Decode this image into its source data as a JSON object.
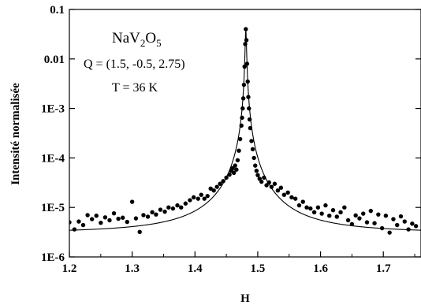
{
  "chart_data": {
    "type": "scatter",
    "xlabel": "H",
    "ylabel": "Intensité normalisée",
    "xlim": [
      1.2,
      1.76
    ],
    "ylim": [
      1e-06,
      0.1
    ],
    "y_scale": "log",
    "grid": false,
    "x_ticks": [
      "1.2",
      "1.3",
      "1.4",
      "1.5",
      "1.6",
      "1.7"
    ],
    "y_ticks": [
      "1E-6",
      "1E-5",
      "1E-4",
      "1E-3",
      "0.01",
      "0.1"
    ],
    "annotations": {
      "compound_base": "NaV",
      "compound_sub1": "2",
      "compound_mid": "O",
      "compound_sub2": "5",
      "q_vector": "Q = (1.5, -0.5, 2.75)",
      "temperature": "T = 36 K"
    },
    "fit": {
      "type": "lorentzian",
      "center": 1.481,
      "peak": 0.04,
      "hwhm": 0.00095
    },
    "series": [
      {
        "type": "scatter",
        "points": [
          [
            1.2,
            5e-06
          ],
          [
            1.208,
            3.6e-06
          ],
          [
            1.215,
            5.2e-06
          ],
          [
            1.222,
            4.4e-06
          ],
          [
            1.229,
            7e-06
          ],
          [
            1.236,
            5.8e-06
          ],
          [
            1.243,
            6.8e-06
          ],
          [
            1.25,
            4.9e-06
          ],
          [
            1.257,
            6.3e-06
          ],
          [
            1.264,
            5.5e-06
          ],
          [
            1.271,
            7.6e-06
          ],
          [
            1.278,
            5.9e-06
          ],
          [
            1.285,
            6.2e-06
          ],
          [
            1.292,
            5.1e-06
          ],
          [
            1.3,
            1.3e-05
          ],
          [
            1.306,
            6e-06
          ],
          [
            1.312,
            3.2e-06
          ],
          [
            1.318,
            7e-06
          ],
          [
            1.325,
            6.5e-06
          ],
          [
            1.332,
            8e-06
          ],
          [
            1.338,
            7.2e-06
          ],
          [
            1.345,
            9e-06
          ],
          [
            1.352,
            8.2e-06
          ],
          [
            1.358,
            1e-05
          ],
          [
            1.365,
            9.5e-06
          ],
          [
            1.372,
            1.1e-05
          ],
          [
            1.378,
            1e-05
          ],
          [
            1.385,
            1.2e-05
          ],
          [
            1.392,
            1.4e-05
          ],
          [
            1.398,
            1.6e-05
          ],
          [
            1.405,
            1.5e-05
          ],
          [
            1.41,
            1.8e-05
          ],
          [
            1.415,
            1.5e-05
          ],
          [
            1.42,
            1.7e-05
          ],
          [
            1.425,
            2.4e-05
          ],
          [
            1.43,
            2.2e-05
          ],
          [
            1.435,
            2.6e-05
          ],
          [
            1.44,
            3e-05
          ],
          [
            1.445,
            3.4e-05
          ],
          [
            1.45,
            4e-05
          ],
          [
            1.455,
            4.6e-05
          ],
          [
            1.458,
            5.5e-05
          ],
          [
            1.46,
            6.2e-05
          ],
          [
            1.462,
            5e-05
          ],
          [
            1.464,
            7e-05
          ],
          [
            1.466,
            5.8e-05
          ],
          [
            1.468,
            9e-05
          ],
          [
            1.47,
            0.00014
          ],
          [
            1.472,
            0.00024
          ],
          [
            1.474,
            0.00045
          ],
          [
            1.475,
            0.00065
          ],
          [
            1.476,
            0.001
          ],
          [
            1.477,
            0.0016
          ],
          [
            1.478,
            0.003
          ],
          [
            1.479,
            0.007
          ],
          [
            1.48,
            0.02
          ],
          [
            1.481,
            0.04
          ],
          [
            1.482,
            0.024
          ],
          [
            1.483,
            0.008
          ],
          [
            1.484,
            0.0035
          ],
          [
            1.485,
            0.0017
          ],
          [
            1.486,
            0.001
          ],
          [
            1.487,
            0.0006
          ],
          [
            1.488,
            0.0004
          ],
          [
            1.49,
            0.00022
          ],
          [
            1.492,
            0.00015
          ],
          [
            1.494,
            0.0001
          ],
          [
            1.496,
            7e-05
          ],
          [
            1.498,
            5.5e-05
          ],
          [
            1.5,
            4.5e-05
          ],
          [
            1.503,
            3.8e-05
          ],
          [
            1.506,
            3.3e-05
          ],
          [
            1.51,
            4e-05
          ],
          [
            1.514,
            2.8e-05
          ],
          [
            1.518,
            3.2e-05
          ],
          [
            1.522,
            2.6e-05
          ],
          [
            1.527,
            3e-05
          ],
          [
            1.532,
            2.2e-05
          ],
          [
            1.537,
            2.5e-05
          ],
          [
            1.542,
            1.8e-05
          ],
          [
            1.548,
            2e-05
          ],
          [
            1.554,
            1.6e-05
          ],
          [
            1.56,
            1.5e-05
          ],
          [
            1.566,
            1.1e-05
          ],
          [
            1.572,
            1.3e-05
          ],
          [
            1.578,
            1e-05
          ],
          [
            1.584,
            9.5e-06
          ],
          [
            1.59,
            8e-06
          ],
          [
            1.596,
            1e-05
          ],
          [
            1.602,
            7.5e-06
          ],
          [
            1.608,
            1.1e-05
          ],
          [
            1.614,
            6.8e-06
          ],
          [
            1.62,
            8.8e-06
          ],
          [
            1.626,
            6.5e-06
          ],
          [
            1.632,
            8e-06
          ],
          [
            1.638,
            1e-05
          ],
          [
            1.644,
            5.5e-06
          ],
          [
            1.65,
            4.6e-06
          ],
          [
            1.656,
            6.9e-06
          ],
          [
            1.662,
            6e-06
          ],
          [
            1.668,
            7.5e-06
          ],
          [
            1.674,
            5e-06
          ],
          [
            1.68,
            8.5e-06
          ],
          [
            1.686,
            4.8e-06
          ],
          [
            1.692,
            7.2e-06
          ],
          [
            1.698,
            3.8e-06
          ],
          [
            1.704,
            6.8e-06
          ],
          [
            1.71,
            3.1e-06
          ],
          [
            1.716,
            5.8e-06
          ],
          [
            1.722,
            4.4e-06
          ],
          [
            1.728,
            6.6e-06
          ],
          [
            1.734,
            5.2e-06
          ],
          [
            1.74,
            3.6e-06
          ],
          [
            1.746,
            4.7e-06
          ],
          [
            1.752,
            4.2e-06
          ]
        ]
      }
    ]
  }
}
